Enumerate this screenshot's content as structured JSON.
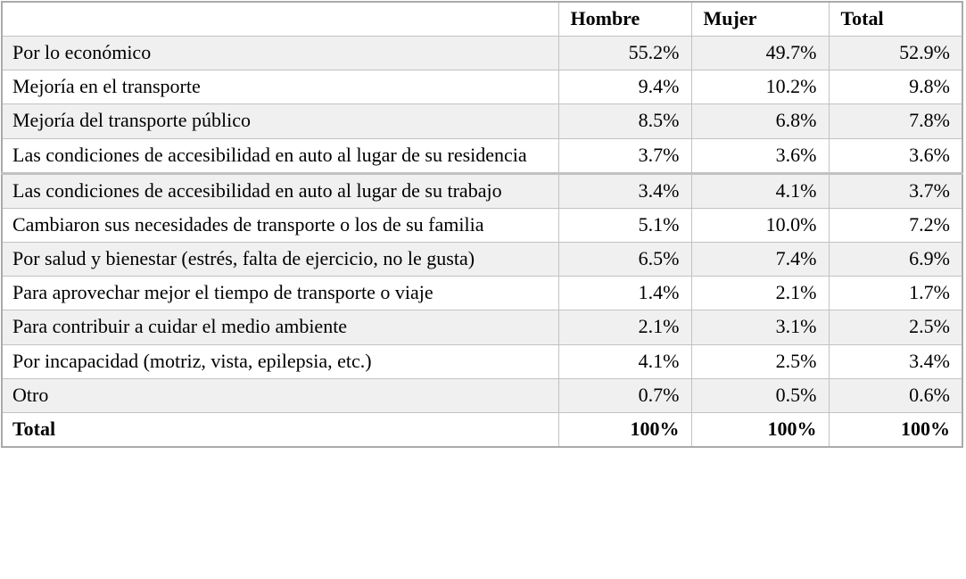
{
  "table": {
    "header": {
      "label_col": "",
      "cols": [
        "Hombre",
        "Mujer",
        "Total"
      ]
    },
    "rows": [
      {
        "label": "Por lo económico",
        "values": [
          "55.2%",
          "49.7%",
          "52.9%"
        ],
        "bold": false
      },
      {
        "label": "Mejoría en el transporte",
        "values": [
          "9.4%",
          "10.2%",
          "9.8%"
        ],
        "bold": false
      },
      {
        "label": "Mejoría del transporte público",
        "values": [
          "8.5%",
          "6.8%",
          "7.8%"
        ],
        "bold": false
      },
      {
        "label": "Las condiciones de accesibilidad en auto al lugar de su residencia",
        "values": [
          "3.7%",
          "3.6%",
          "3.6%"
        ],
        "bold": false
      },
      {
        "label": "Las condiciones de accesibilidad en auto al lugar de su trabajo",
        "values": [
          "3.4%",
          "4.1%",
          "3.7%"
        ],
        "bold": false
      },
      {
        "label": "Cambiaron sus necesidades de transporte o los de su familia",
        "values": [
          "5.1%",
          "10.0%",
          "7.2%"
        ],
        "bold": false
      },
      {
        "label": "Por salud y bienestar (estrés, falta de ejercicio, no le gusta)",
        "values": [
          "6.5%",
          "7.4%",
          "6.9%"
        ],
        "bold": false
      },
      {
        "label": "Para aprovechar mejor el tiempo de transporte o viaje",
        "values": [
          "1.4%",
          "2.1%",
          "1.7%"
        ],
        "bold": false
      },
      {
        "label": "Para contribuir a cuidar el medio ambiente",
        "values": [
          "2.1%",
          "3.1%",
          "2.5%"
        ],
        "bold": false
      },
      {
        "label": "Por incapacidad (motriz, vista, epilepsia, etc.)",
        "values": [
          "4.1%",
          "2.5%",
          "3.4%"
        ],
        "bold": false
      },
      {
        "label": "Otro",
        "values": [
          "0.7%",
          "0.5%",
          "0.6%"
        ],
        "bold": false
      },
      {
        "label": "Total",
        "values": [
          "100%",
          "100%",
          "100%"
        ],
        "bold": true
      }
    ]
  },
  "colors": {
    "stripe": "#f0f0f0",
    "row_alt": "#ffffff",
    "border_inner": "#c2c2c2",
    "border_outer": "#aaaaaa",
    "text": "#000000"
  }
}
